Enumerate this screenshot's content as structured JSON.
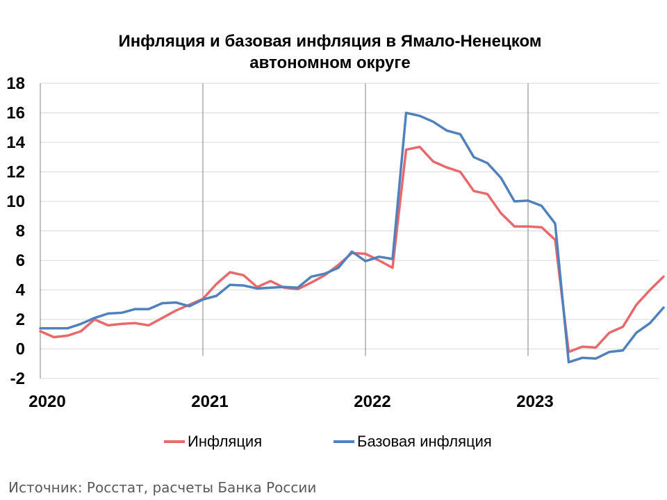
{
  "chart_data": {
    "type": "line",
    "title_lines": [
      "Инфляция и базовая инфляция в Ямало-Ненецком",
      "автономном округе"
    ],
    "ylim": [
      -2,
      18
    ],
    "y_ticks": [
      "-2",
      "0",
      "2",
      "4",
      "6",
      "8",
      "10",
      "12",
      "14",
      "16",
      "18"
    ],
    "x_ticks": [
      "2020",
      "2021",
      "2022",
      "2023"
    ],
    "grid": "horizontal",
    "legend_position": "bottom",
    "x_start": "2020-01",
    "series": [
      {
        "name": "Инфляция",
        "color": "#e8696b",
        "values": [
          1.2,
          0.8,
          0.9,
          1.2,
          2.0,
          1.6,
          1.7,
          1.75,
          1.6,
          2.1,
          2.6,
          3.0,
          3.4,
          4.4,
          5.2,
          5.0,
          4.2,
          4.6,
          4.15,
          4.05,
          4.5,
          5.0,
          5.7,
          6.5,
          6.45,
          6.0,
          5.5,
          13.5,
          13.7,
          12.7,
          12.3,
          12.0,
          10.7,
          10.5,
          9.2,
          8.3,
          8.3,
          8.25,
          7.4,
          -0.2,
          0.15,
          0.1,
          1.1,
          1.5,
          3.0,
          4.0,
          4.9
        ]
      },
      {
        "name": "Базовая инфляция",
        "color": "#4f81bd",
        "values": [
          1.4,
          1.4,
          1.4,
          1.7,
          2.1,
          2.4,
          2.45,
          2.7,
          2.7,
          3.1,
          3.15,
          2.9,
          3.35,
          3.6,
          4.35,
          4.3,
          4.1,
          4.15,
          4.2,
          4.15,
          4.9,
          5.1,
          5.5,
          6.6,
          5.95,
          6.25,
          6.1,
          16.0,
          15.8,
          15.4,
          14.8,
          14.55,
          13.0,
          12.6,
          11.6,
          10.0,
          10.05,
          9.7,
          8.5,
          -0.9,
          -0.6,
          -0.65,
          -0.2,
          -0.1,
          1.1,
          1.75,
          2.8
        ]
      }
    ]
  },
  "source_text": "Источник: Росстат, расчеты Банка России"
}
